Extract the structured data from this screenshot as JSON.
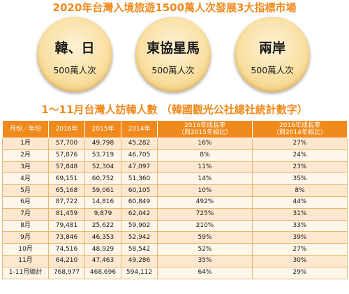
{
  "headline": "2020年台灣入境旅遊1500萬人次發展3大指標市場",
  "markets": [
    {
      "name": "韓、日",
      "target": "500萬人次"
    },
    {
      "name": "東協星馬",
      "target": "500萬人次"
    },
    {
      "name": "兩岸",
      "target": "500萬人次"
    }
  ],
  "subtitle": "1～11月台灣人訪韓人數 （韓國觀光公社總社統計數字）",
  "colors": {
    "accent": "#f08a1c",
    "row_light": "#fff6ea",
    "row_dark": "#fde8cf"
  },
  "table": {
    "headers": [
      "月份／年份",
      "2016年",
      "2015年",
      "2014年",
      "2016年成長率\n（與2015年相比）",
      "2016年成長率\n（與2014年相比）"
    ],
    "rows": [
      [
        "1月",
        "57,700",
        "49,798",
        "45,282",
        "16%",
        "27%"
      ],
      [
        "2月",
        "57,876",
        "53,719",
        "46,705",
        "8%",
        "24%"
      ],
      [
        "3月",
        "57,848",
        "52,304",
        "47,097",
        "11%",
        "23%"
      ],
      [
        "4月",
        "69,151",
        "60,752",
        "51,360",
        "14%",
        "35%"
      ],
      [
        "5月",
        "65,168",
        "59,061",
        "60,105",
        "10%",
        "8%"
      ],
      [
        "6月",
        "87,722",
        "14,816",
        "60,849",
        "492%",
        "44%"
      ],
      [
        "7月",
        "81,459",
        "9,879",
        "62,042",
        "725%",
        "31%"
      ],
      [
        "8月",
        "79,481",
        "25,622",
        "59,902",
        "210%",
        "33%"
      ],
      [
        "9月",
        "73,846",
        "46,353",
        "52,942",
        "59%",
        "39%"
      ],
      [
        "10月",
        "74,516",
        "48,929",
        "58,542",
        "52%",
        "27%"
      ],
      [
        "11月",
        "64,210",
        "47,463",
        "49,286",
        "35%",
        "30%"
      ],
      [
        "1-11月總計",
        "768,977",
        "468,696",
        "594,112",
        "64%",
        "29%"
      ]
    ]
  }
}
